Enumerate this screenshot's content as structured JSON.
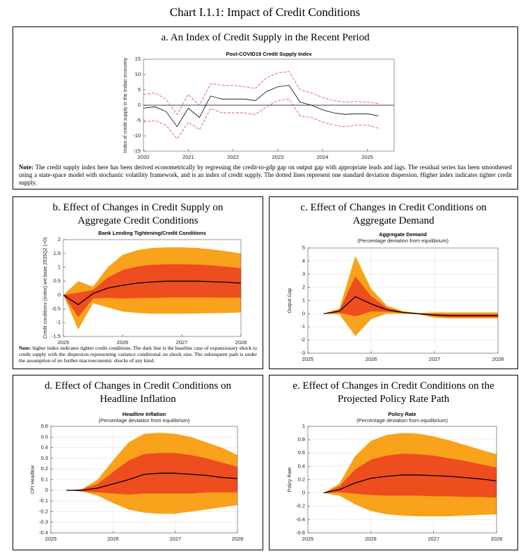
{
  "title": "Chart I.1.1: Impact of Credit Conditions",
  "chart_data": [
    {
      "type": "line",
      "panel_title": "a. An Index of Credit Supply in the Recent Period",
      "title": "Post-COVID19 Credit Supply Index",
      "ylabel": "Index of credit supply in the Indian economy",
      "x": [
        2020,
        2020.25,
        2020.5,
        2020.75,
        2021,
        2021.25,
        2021.5,
        2021.75,
        2022,
        2022.25,
        2022.5,
        2022.75,
        2023,
        2023.25,
        2023.5,
        2023.75,
        2024,
        2024.25,
        2024.5,
        2024.75,
        2025,
        2025.25
      ],
      "series": [
        {
          "color": "#e8585a",
          "dash": true,
          "values": [
            3.5,
            4,
            2,
            -3,
            3.5,
            0,
            7,
            6.5,
            6.5,
            6,
            5.5,
            9,
            10.5,
            11,
            5,
            4,
            2.5,
            1.5,
            1,
            1.2,
            1,
            0.5
          ]
        },
        {
          "color": "#e8585a",
          "dash": true,
          "values": [
            -5.5,
            -5,
            -6.5,
            -11,
            -5.5,
            -8,
            -1,
            -2.5,
            -2.5,
            -2.5,
            -3,
            -0.5,
            1.5,
            2,
            -3.5,
            -4,
            -5.5,
            -6.5,
            -7,
            -6.5,
            -6.5,
            -7.5
          ]
        },
        {
          "color": "#000000",
          "dash": false,
          "values": [
            -1,
            -0.5,
            -2,
            -7,
            -1,
            -4,
            3,
            2,
            2,
            2,
            1.5,
            4.5,
            6,
            6.5,
            1,
            0,
            -1.5,
            -2.5,
            -3,
            -2.8,
            -2.8,
            -3.5
          ]
        }
      ],
      "hline": 0,
      "xlim": [
        2020,
        2025.6
      ],
      "xticks": [
        2020,
        2021,
        2022,
        2023,
        2024,
        2025
      ],
      "ylim": [
        -15,
        15
      ],
      "yticks": [
        -15,
        -10,
        -5,
        0,
        5,
        10,
        15
      ],
      "grid": false,
      "note_label": "Note:",
      "note": "The credit supply index here has been derived econometrically by regressing the credit-to-gdp gap on output gap with appropriate leads and lags. The residual series has been smoothened using a state-space model with stochastic volatility framework, and is an index of credit supply. The dotted lines represent one standard deviation dispersion. Higher index indicates tighter credit supply."
    },
    {
      "type": "fan",
      "panel_title": "b. Effect of Changes in Credit Supply on Aggregate Credit Conditions",
      "title": "Bank Lending Tightening/Credit Conditions",
      "ylabel": "Credit conditions (index) wrt base 2025Q2 (=0)",
      "x": [
        2025,
        2025.25,
        2025.5,
        2025.75,
        2026,
        2026.25,
        2026.5,
        2026.75,
        2027,
        2027.25,
        2027.5,
        2027.75,
        2028
      ],
      "center": [
        0,
        -0.35,
        0.05,
        0.25,
        0.35,
        0.43,
        0.47,
        0.5,
        0.5,
        0.5,
        0.48,
        0.46,
        0.43
      ],
      "center_color": "#000000",
      "bands": [
        {
          "color": "#f9a21c",
          "upper": [
            0,
            0.5,
            0.3,
            1.0,
            1.45,
            1.62,
            1.7,
            1.72,
            1.72,
            1.7,
            1.65,
            1.58,
            1.5
          ],
          "lower": [
            0,
            -1.25,
            -0.3,
            -0.45,
            -0.6,
            -0.65,
            -0.68,
            -0.68,
            -0.68,
            -0.67,
            -0.66,
            -0.65,
            -0.63
          ]
        },
        {
          "color": "#ee4d1e",
          "upper": [
            0,
            0.08,
            0.18,
            0.63,
            0.9,
            1.03,
            1.09,
            1.11,
            1.11,
            1.1,
            1.07,
            1.02,
            0.97
          ],
          "lower": [
            0,
            -0.8,
            -0.13,
            -0.1,
            -0.13,
            -0.11,
            -0.11,
            -0.09,
            -0.09,
            -0.09,
            -0.09,
            -0.1,
            -0.1
          ]
        }
      ],
      "xlim": [
        2025,
        2028
      ],
      "xticks": [
        2025,
        2026,
        2027,
        2028
      ],
      "ylim": [
        -1.5,
        2
      ],
      "yticks": [
        -1.5,
        -1,
        -0.5,
        0,
        0.5,
        1,
        1.5,
        2
      ],
      "grid": false,
      "note_label": "Note:",
      "note": "higher index indicates tighter credit conditions. The dark line is the baseline case of expansionary shock to credit supply with the dispersion representing variance conditional on shock size. The subsequent path is under the assumption of no further macroeconomic shocks of any kind."
    },
    {
      "type": "fan",
      "panel_title": "c. Effect of Changes in Credit Conditions on Aggregate Demand",
      "title": "Aggregate Demand",
      "subtitle": "(Percentage deviation from equilibrium)",
      "ylabel": "Output Gap",
      "x": [
        2025.25,
        2025.5,
        2025.75,
        2026,
        2026.25,
        2026.5,
        2026.75,
        2027,
        2027.25,
        2027.5,
        2027.75,
        2028
      ],
      "center": [
        0,
        0.2,
        1.3,
        0.75,
        0.3,
        0.1,
        0,
        -0.1,
        -0.15,
        -0.15,
        -0.15,
        -0.15
      ],
      "center_color": "#000000",
      "bands": [
        {
          "color": "#f9a21c",
          "upper": [
            0,
            0.4,
            4.4,
            1.9,
            0.6,
            0.2,
            0.05,
            0.1,
            0.1,
            0.1,
            0.1,
            0.1
          ],
          "lower": [
            0,
            -0.05,
            -1.7,
            -0.4,
            0,
            0,
            -0.05,
            -0.3,
            -0.35,
            -0.35,
            -0.35,
            -0.35
          ]
        },
        {
          "color": "#ee4d1e",
          "upper": [
            0,
            0.3,
            2.85,
            1.33,
            0.45,
            0.15,
            0.03,
            0,
            -0.03,
            -0.03,
            -0.03,
            -0.03
          ],
          "lower": [
            0,
            0.08,
            -0.2,
            0.18,
            0.15,
            0.05,
            -0.03,
            -0.2,
            -0.25,
            -0.25,
            -0.25,
            -0.25
          ]
        }
      ],
      "xlim": [
        2025,
        2028
      ],
      "xticks": [
        2025,
        2026,
        2027,
        2028
      ],
      "ylim": [
        -3,
        5
      ],
      "yticks": [
        -3,
        -2,
        -1,
        0,
        1,
        2,
        3,
        4,
        5
      ],
      "grid": true
    },
    {
      "type": "fan",
      "panel_title": "d. Effect of Changes in Credit Conditions on Headline Inflation",
      "title": "Headline Inflation",
      "subtitle": "(Percentage deviation from equilibrium)",
      "ylabel": "CPI Headline",
      "x": [
        2025.25,
        2025.5,
        2025.75,
        2026,
        2026.25,
        2026.5,
        2026.75,
        2027,
        2027.25,
        2027.5,
        2027.75,
        2028
      ],
      "center": [
        0,
        0,
        0.02,
        0.06,
        0.1,
        0.15,
        0.16,
        0.16,
        0.15,
        0.14,
        0.12,
        0.11
      ],
      "center_color": "#000000",
      "bands": [
        {
          "color": "#f9a21c",
          "upper": [
            0,
            0.01,
            0.1,
            0.28,
            0.45,
            0.53,
            0.54,
            0.53,
            0.5,
            0.45,
            0.4,
            0.33
          ],
          "lower": [
            0,
            -0.01,
            -0.05,
            -0.12,
            -0.18,
            -0.21,
            -0.22,
            -0.22,
            -0.2,
            -0.18,
            -0.16,
            -0.14
          ]
        },
        {
          "color": "#ee4d1e",
          "upper": [
            0,
            0.01,
            0.06,
            0.17,
            0.28,
            0.34,
            0.35,
            0.35,
            0.33,
            0.3,
            0.26,
            0.22
          ],
          "lower": [
            0,
            -0.01,
            -0.02,
            -0.03,
            -0.04,
            -0.03,
            -0.03,
            -0.03,
            -0.03,
            -0.02,
            -0.02,
            -0.02
          ]
        }
      ],
      "xlim": [
        2025,
        2028
      ],
      "xticks": [
        2025,
        2026,
        2027,
        2028
      ],
      "ylim": [
        -0.4,
        0.6
      ],
      "yticks": [
        -0.4,
        -0.3,
        -0.2,
        -0.1,
        0,
        0.1,
        0.2,
        0.3,
        0.4,
        0.5,
        0.6
      ],
      "grid": true
    },
    {
      "type": "fan",
      "panel_title": "e. Effect of Changes in Credit Conditions on the Projected Policy Rate Path",
      "title": "Policy Rate",
      "subtitle": "(Percentage deviation from equilibrium)",
      "ylabel": "Policy Rate",
      "x": [
        2025.25,
        2025.5,
        2025.75,
        2026,
        2026.25,
        2026.5,
        2026.75,
        2027,
        2027.25,
        2027.5,
        2027.75,
        2028
      ],
      "center": [
        0,
        0.05,
        0.15,
        0.22,
        0.25,
        0.27,
        0.27,
        0.26,
        0.25,
        0.23,
        0.21,
        0.18
      ],
      "center_color": "#000000",
      "bands": [
        {
          "color": "#f9a21c",
          "upper": [
            0,
            0.14,
            0.55,
            0.78,
            0.87,
            0.9,
            0.89,
            0.85,
            0.79,
            0.72,
            0.65,
            0.58
          ],
          "lower": [
            0,
            -0.04,
            -0.17,
            -0.27,
            -0.32,
            -0.34,
            -0.35,
            -0.35,
            -0.35,
            -0.34,
            -0.33,
            -0.32
          ]
        },
        {
          "color": "#ee4d1e",
          "upper": [
            0,
            0.1,
            0.35,
            0.5,
            0.56,
            0.59,
            0.58,
            0.56,
            0.52,
            0.48,
            0.43,
            0.38
          ],
          "lower": [
            0,
            0.01,
            -0.01,
            -0.03,
            -0.04,
            -0.04,
            -0.04,
            -0.05,
            -0.05,
            -0.06,
            -0.06,
            -0.07
          ]
        }
      ],
      "xlim": [
        2025,
        2028
      ],
      "xticks": [
        2025,
        2026,
        2027,
        2028
      ],
      "ylim": [
        -0.6,
        1
      ],
      "yticks": [
        -0.6,
        -0.4,
        -0.2,
        0,
        0.2,
        0.4,
        0.6,
        0.8,
        1
      ],
      "grid": true
    }
  ]
}
